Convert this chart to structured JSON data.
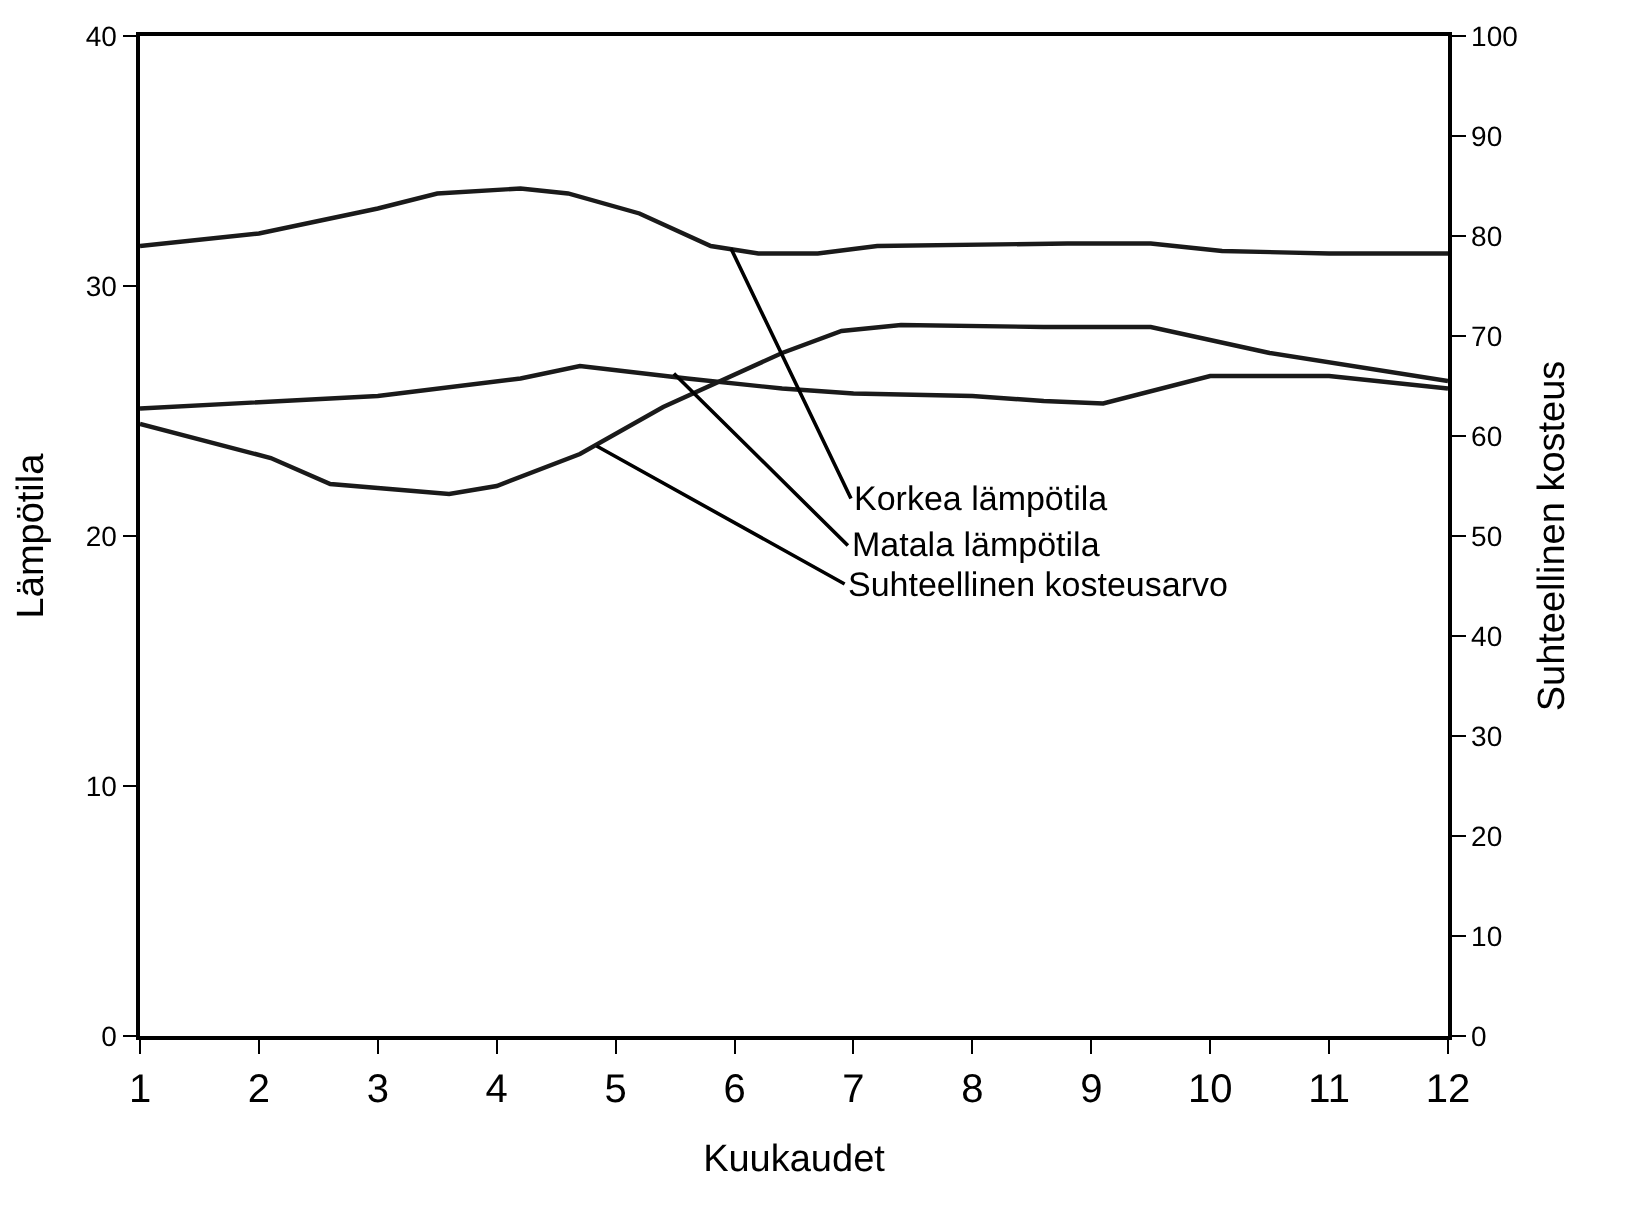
{
  "chart_data": {
    "type": "line",
    "xlabel": "Kuukaudet",
    "ylabel": "Lämpötila",
    "y2label": "Suhteellinen kosteus",
    "xlim": [
      1,
      12
    ],
    "xticks": [
      1,
      2,
      3,
      4,
      5,
      6,
      7,
      8,
      9,
      10,
      11,
      12
    ],
    "ylim": [
      0,
      40
    ],
    "yticks": [
      0,
      10,
      20,
      30,
      40
    ],
    "y2lim": [
      0,
      100
    ],
    "y2ticks": [
      0,
      10,
      20,
      30,
      40,
      50,
      60,
      70,
      80,
      90,
      100
    ],
    "grid": false,
    "marker": "none",
    "line_style": "solid",
    "series": [
      {
        "color": "#1a1a1a",
        "x": [
          1,
          2,
          3,
          3.5,
          4.2,
          4.6,
          5.2,
          5.8,
          6.2,
          6.7,
          7.2,
          8.8,
          9.5,
          10.1,
          11,
          12
        ],
        "values": [
          31.6,
          32.1,
          33.1,
          33.7,
          33.9,
          33.7,
          32.9,
          31.6,
          31.3,
          31.3,
          31.6,
          31.7,
          31.7,
          31.4,
          31.3,
          31.3
        ]
      },
      {
        "color": "#1a1a1a",
        "x": [
          1,
          3,
          4.2,
          4.7,
          5.6,
          6.4,
          7,
          8,
          8.6,
          9.1,
          10,
          11,
          12
        ],
        "values": [
          25.1,
          25.6,
          26.3,
          26.8,
          26.3,
          25.9,
          25.7,
          25.6,
          25.4,
          25.3,
          26.4,
          26.4,
          25.9
        ]
      },
      {
        "color": "#1a1a1a",
        "axis": "y2",
        "x": [
          1,
          2.1,
          2.6,
          3.6,
          4,
          4.7,
          5.4,
          6.4,
          6.9,
          7.4,
          8.6,
          9.5,
          10.5,
          12
        ],
        "values": [
          61.2,
          57.8,
          55.2,
          54.2,
          55,
          58.2,
          62.9,
          68.3,
          70.5,
          71.1,
          70.9,
          70.9,
          68.3,
          65.5
        ]
      }
    ],
    "annotations": [
      {
        "text": "Korkea lämpötila",
        "x": 5.97,
        "y": 31.5
      },
      {
        "text": "Matala lämpötila",
        "x": 5.49,
        "y": 26.5
      },
      {
        "text": "Suhteellinen kosteusarvo",
        "x": 4.84,
        "y": 23.6
      }
    ]
  }
}
